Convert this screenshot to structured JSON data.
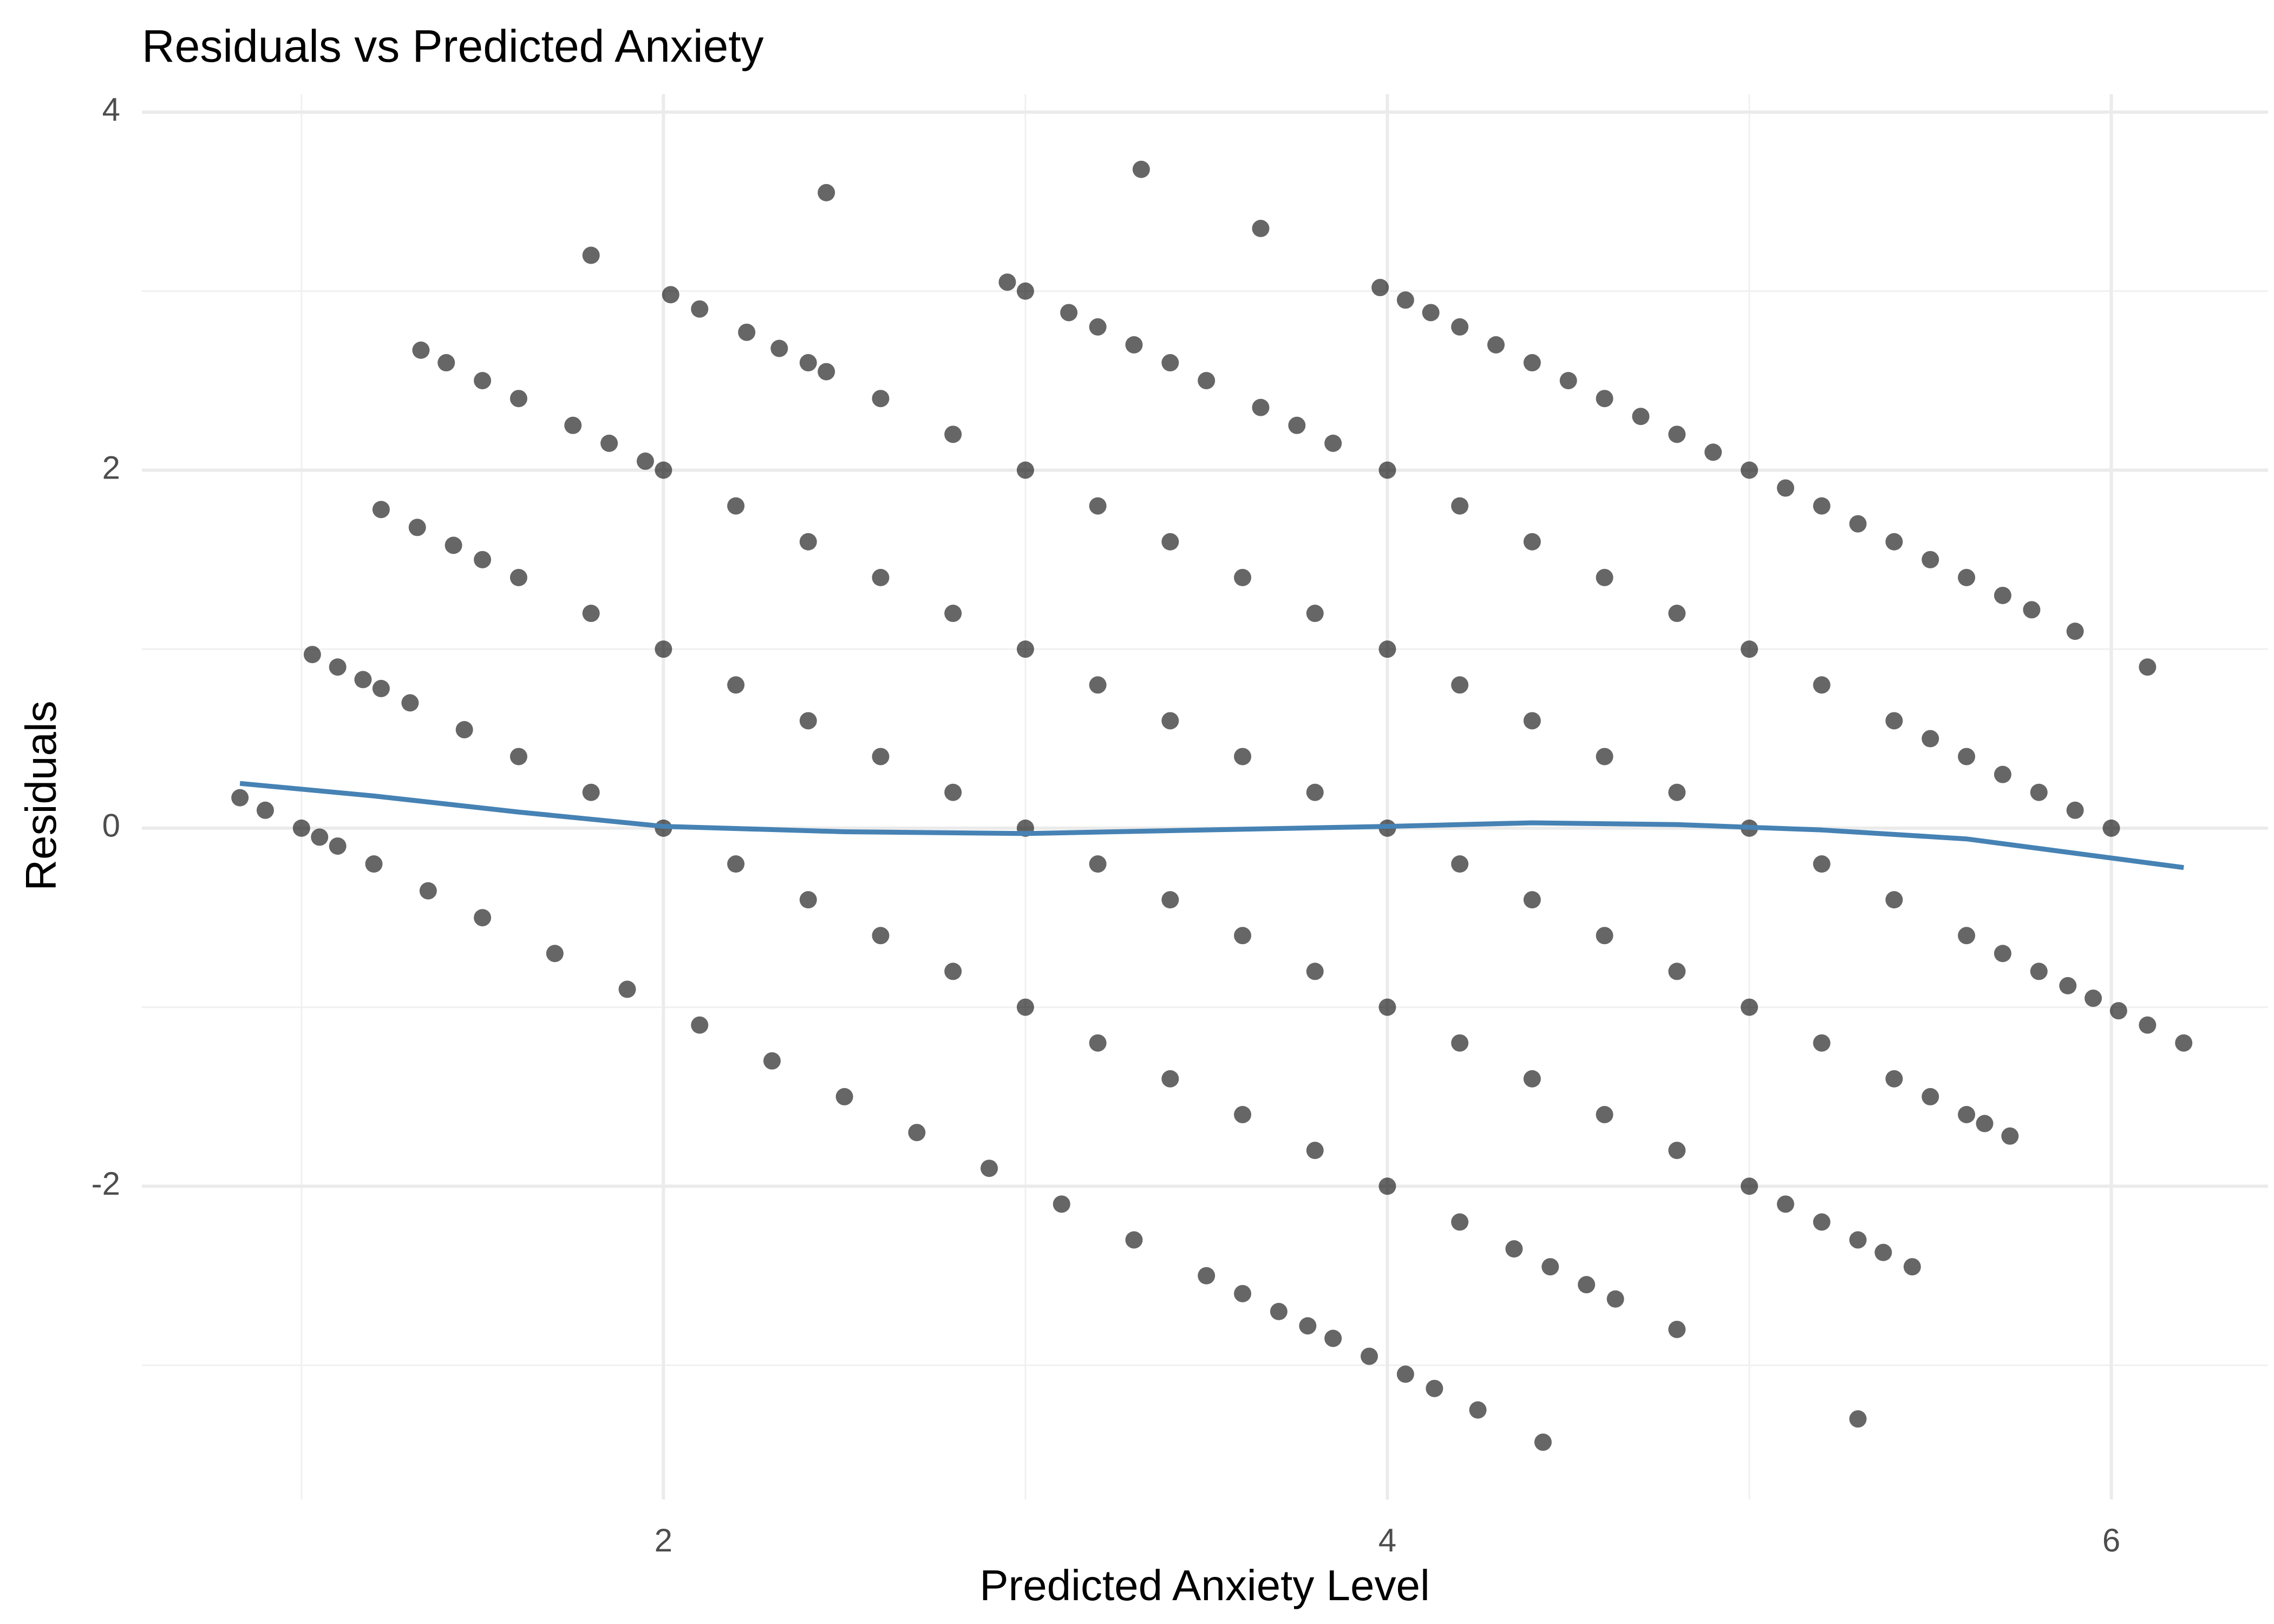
{
  "chart_data": {
    "type": "scatter",
    "title": "Residuals vs Predicted Anxiety",
    "xlabel": "Predicted Anxiety Level",
    "ylabel": "Residuals",
    "xlim": [
      0.559,
      6.433
    ],
    "ylim": [
      -3.75,
      4.1
    ],
    "xticks": [
      2,
      4,
      6
    ],
    "yticks": [
      -2,
      0,
      2,
      4
    ],
    "minor_xticks": [
      1,
      3,
      5
    ],
    "minor_yticks": [
      -3,
      -1,
      1,
      3
    ],
    "grid": true,
    "points": {
      "color": "#000000",
      "opacity": 0.6,
      "x": [
        0.83,
        0.9,
        1.0,
        1.05,
        1.1,
        1.2,
        1.35,
        1.5,
        1.7,
        1.9,
        2.1,
        2.3,
        2.5,
        2.7,
        2.9,
        3.1,
        3.3,
        3.5,
        3.6,
        3.7,
        3.78,
        3.85,
        3.95,
        4.05,
        4.13,
        4.25,
        4.43,
        1.03,
        1.1,
        1.17,
        1.22,
        1.3,
        1.45,
        1.6,
        1.8,
        2.0,
        2.2,
        2.4,
        2.6,
        2.8,
        3.0,
        3.2,
        3.4,
        3.6,
        3.8,
        4.0,
        4.2,
        4.35,
        4.45,
        4.55,
        4.63,
        4.8,
        5.3,
        1.22,
        1.32,
        1.42,
        1.5,
        1.6,
        1.8,
        2.0,
        2.2,
        2.4,
        2.6,
        2.8,
        3.0,
        3.2,
        3.4,
        3.6,
        3.8,
        4.0,
        4.2,
        4.4,
        4.6,
        4.8,
        5.0,
        5.1,
        5.2,
        5.3,
        5.37,
        5.45,
        1.33,
        1.4,
        1.5,
        1.6,
        1.75,
        1.85,
        1.95,
        2.0,
        2.2,
        2.4,
        2.6,
        2.8,
        3.0,
        3.2,
        3.4,
        3.6,
        3.8,
        4.0,
        4.2,
        4.4,
        4.6,
        4.8,
        5.0,
        5.2,
        5.4,
        5.5,
        5.6,
        5.65,
        5.72,
        1.8,
        2.02,
        2.1,
        2.23,
        2.32,
        2.4,
        2.45,
        2.6,
        2.8,
        3.0,
        3.2,
        3.4,
        3.6,
        3.8,
        4.0,
        4.2,
        4.4,
        4.6,
        4.8,
        5.0,
        5.2,
        5.4,
        5.6,
        5.7,
        5.8,
        5.88,
        5.95,
        6.02,
        6.1,
        6.2,
        2.45,
        2.95,
        3.0,
        3.12,
        3.2,
        3.3,
        3.4,
        3.5,
        3.65,
        3.75,
        3.85,
        4.0,
        4.2,
        4.4,
        4.6,
        4.8,
        5.0,
        5.2,
        5.4,
        5.5,
        5.6,
        5.7,
        5.8,
        5.9,
        6.0,
        3.32,
        3.65,
        3.98,
        4.05,
        4.12,
        4.2,
        4.3,
        4.4,
        4.5,
        4.6,
        4.7,
        4.8,
        4.9,
        5.0,
        5.1,
        5.2,
        5.3,
        5.4,
        5.5,
        5.6,
        5.7,
        5.78,
        5.9,
        6.1
      ],
      "y": [
        0.17,
        0.1,
        0,
        -0.05,
        -0.1,
        -0.2,
        -0.35,
        -0.5,
        -0.7,
        -0.9,
        -1.1,
        -1.3,
        -1.5,
        -1.7,
        -1.9,
        -2.1,
        -2.3,
        -2.5,
        -2.6,
        -2.7,
        -2.78,
        -2.85,
        -2.95,
        -3.05,
        -3.13,
        -3.25,
        -3.43,
        0.97,
        0.9,
        0.83,
        0.78,
        0.7,
        0.55,
        0.4,
        0.2,
        0,
        -0.2,
        -0.4,
        -0.6,
        -0.8,
        -1,
        -1.2,
        -1.4,
        -1.6,
        -1.8,
        -2,
        -2.2,
        -2.35,
        -2.45,
        -2.55,
        -2.63,
        -2.8,
        -3.3,
        1.78,
        1.68,
        1.58,
        1.5,
        1.4,
        1.2,
        1,
        0.8,
        0.6,
        0.4,
        0.2,
        0,
        -0.2,
        -0.4,
        -0.6,
        -0.8,
        -1,
        -1.2,
        -1.4,
        -1.6,
        -1.8,
        -2,
        -2.1,
        -2.2,
        -2.3,
        -2.37,
        -2.45,
        2.67,
        2.6,
        2.5,
        2.4,
        2.25,
        2.15,
        2.05,
        2,
        1.8,
        1.6,
        1.4,
        1.2,
        1,
        0.8,
        0.6,
        0.4,
        0.2,
        0,
        -0.2,
        -0.4,
        -0.6,
        -0.8,
        -1,
        -1.2,
        -1.4,
        -1.5,
        -1.6,
        -1.65,
        -1.72,
        3.2,
        2.98,
        2.9,
        2.77,
        2.68,
        2.6,
        2.55,
        2.4,
        2.2,
        2,
        1.8,
        1.6,
        1.4,
        1.2,
        1,
        0.8,
        0.6,
        0.4,
        0.2,
        0,
        -0.2,
        -0.4,
        -0.6,
        -0.7,
        -0.8,
        -0.88,
        -0.95,
        -1.02,
        -1.1,
        -1.2,
        3.55,
        3.05,
        3,
        2.88,
        2.8,
        2.7,
        2.6,
        2.5,
        2.35,
        2.25,
        2.15,
        2,
        1.8,
        1.6,
        1.4,
        1.2,
        1,
        0.8,
        0.6,
        0.5,
        0.4,
        0.3,
        0.2,
        0.1,
        0,
        3.68,
        3.35,
        3.02,
        2.95,
        2.88,
        2.8,
        2.7,
        2.6,
        2.5,
        2.4,
        2.3,
        2.2,
        2.1,
        2,
        1.9,
        1.8,
        1.7,
        1.6,
        1.5,
        1.4,
        1.3,
        1.22,
        1.1,
        0.9
      ]
    },
    "smooth": {
      "color": "#4682b4",
      "x": [
        0.83,
        1.2,
        1.6,
        2.0,
        2.5,
        3.0,
        3.5,
        4.0,
        4.4,
        4.8,
        5.2,
        5.6,
        6.2
      ],
      "y": [
        0.25,
        0.18,
        0.09,
        0.01,
        -0.02,
        -0.03,
        -0.01,
        0.01,
        0.03,
        0.02,
        -0.01,
        -0.06,
        -0.22
      ]
    }
  }
}
